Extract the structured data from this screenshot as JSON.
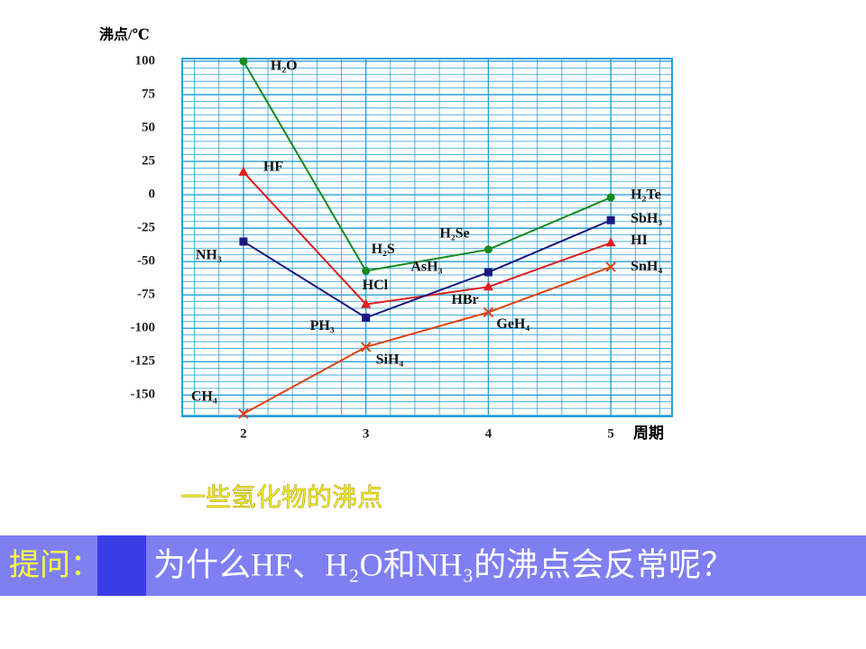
{
  "chart_data": {
    "type": "line",
    "y_label": "沸点/℃",
    "x_label": "周期",
    "caption": "一些氢化物的沸点",
    "x": [
      2,
      3,
      4,
      5
    ],
    "xlim": [
      1.5,
      5.5
    ],
    "xticks": [
      2,
      3,
      4,
      5
    ],
    "ylim": [
      -166,
      102
    ],
    "yticks": [
      100,
      75,
      50,
      25,
      0,
      -25,
      -50,
      -75,
      -100,
      -125,
      -150
    ],
    "grid": true,
    "series": [
      {
        "color": "#168a1e",
        "marker": "circle",
        "values": [
          100,
          -57,
          -41,
          -2
        ],
        "labels": [
          "H₂O",
          "H₂S",
          "H₂Se",
          "H₂Te"
        ]
      },
      {
        "color": "#e01c1c",
        "marker": "triangle",
        "values": [
          17,
          -82,
          -69,
          -36
        ],
        "labels": [
          "HF",
          "HCl",
          "HBr",
          "HI"
        ]
      },
      {
        "color": "#1a1a80",
        "marker": "square",
        "values": [
          -35,
          -92,
          -58,
          -19
        ],
        "labels": [
          "NH₃",
          "PH₃",
          "AsH₃",
          "SbH₃"
        ]
      },
      {
        "color": "#e0400e",
        "marker": "x",
        "values": [
          -164,
          -114,
          -88,
          -54
        ],
        "labels": [
          "CH₄",
          "SiH₄",
          "GeH₄",
          "SnH₄"
        ]
      }
    ]
  },
  "question": {
    "prefix": "提问：",
    "text": "为什么HF、H₂O和NH₃的沸点会反常呢？"
  }
}
